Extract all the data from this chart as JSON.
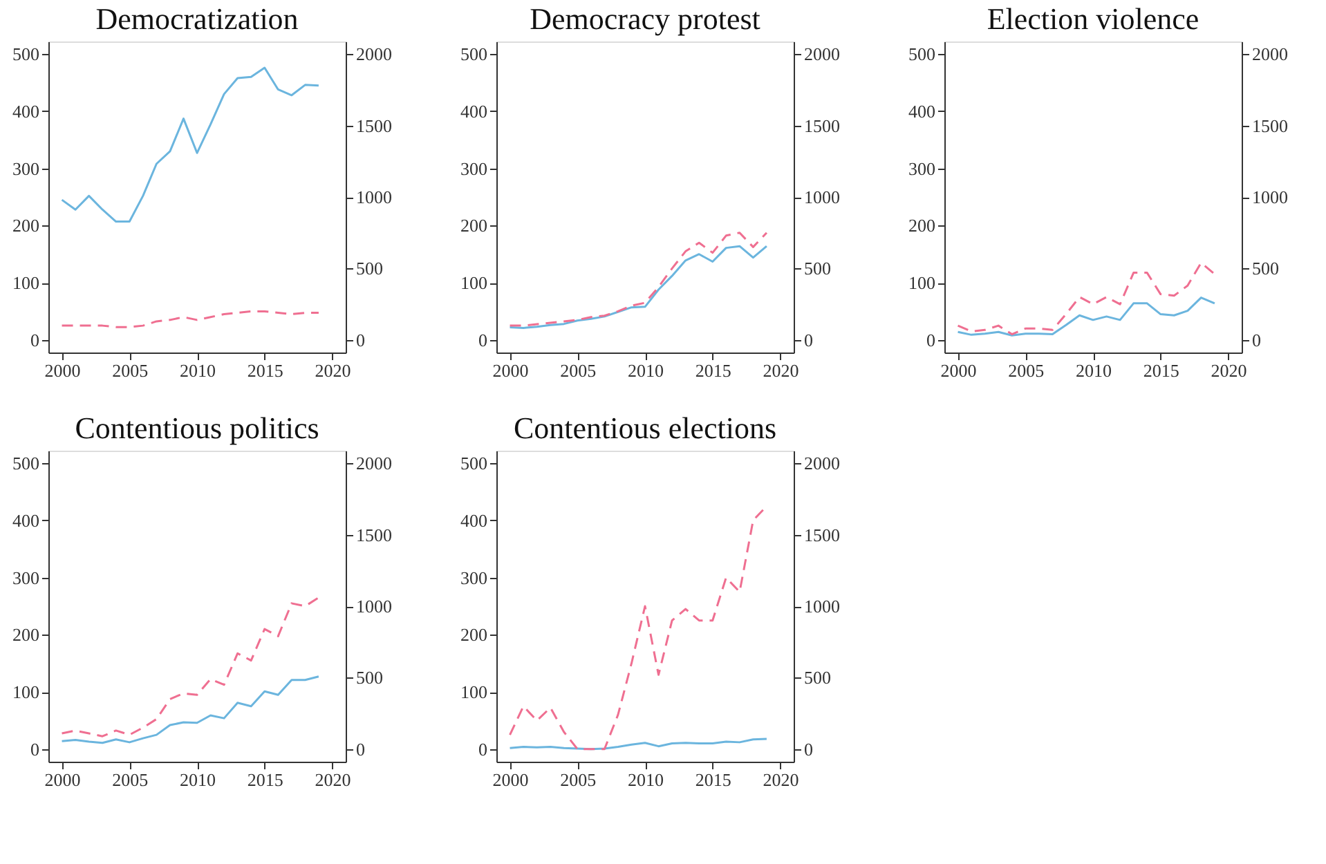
{
  "chart_data": [
    {
      "type": "line",
      "title": "Democratization",
      "x": [
        2000,
        2001,
        2002,
        2003,
        2004,
        2005,
        2006,
        2007,
        2008,
        2009,
        2010,
        2011,
        2012,
        2013,
        2014,
        2015,
        2016,
        2017,
        2018,
        2019
      ],
      "xlim": [
        1999,
        2021
      ],
      "xticks": [
        2000,
        2005,
        2010,
        2015,
        2020
      ],
      "ylim": [
        -22,
        522
      ],
      "yticks": [
        0,
        100,
        200,
        300,
        400,
        500
      ],
      "y2lim": [
        -88,
        2088
      ],
      "y2ticks": [
        0,
        500,
        1000,
        1500,
        2000
      ],
      "grid": false,
      "series": [
        {
          "color": "#6bb5de",
          "line_style": "solid",
          "values": [
            245,
            228,
            252,
            228,
            207,
            207,
            252,
            308,
            330,
            387,
            327,
            377,
            430,
            458,
            460,
            476,
            438,
            428,
            446,
            445
          ]
        },
        {
          "color": "#ef6f91",
          "line_style": "dashed",
          "axis": "y2",
          "values": [
            100,
            100,
            100,
            100,
            90,
            90,
            100,
            130,
            140,
            160,
            140,
            160,
            180,
            190,
            200,
            200,
            190,
            180,
            190,
            190
          ]
        }
      ]
    },
    {
      "type": "line",
      "title": "Democracy protest",
      "x": [
        2000,
        2001,
        2002,
        2003,
        2004,
        2005,
        2006,
        2007,
        2008,
        2009,
        2010,
        2011,
        2012,
        2013,
        2014,
        2015,
        2016,
        2017,
        2018,
        2019
      ],
      "xlim": [
        1999,
        2021
      ],
      "xticks": [
        2000,
        2005,
        2010,
        2015,
        2020
      ],
      "ylim": [
        -22,
        522
      ],
      "yticks": [
        0,
        100,
        200,
        300,
        400,
        500
      ],
      "y2lim": [
        -88,
        2088
      ],
      "y2ticks": [
        0,
        500,
        1000,
        1500,
        2000
      ],
      "grid": false,
      "series": [
        {
          "color": "#6bb5de",
          "line_style": "solid",
          "values": [
            22,
            21,
            23,
            26,
            28,
            34,
            37,
            41,
            49,
            57,
            58,
            88,
            112,
            139,
            150,
            137,
            161,
            164,
            144,
            164
          ]
        },
        {
          "color": "#ef6f91",
          "line_style": "dashed",
          "axis": "y2",
          "values": [
            100,
            100,
            110,
            120,
            130,
            140,
            160,
            170,
            200,
            240,
            260,
            370,
            500,
            620,
            680,
            610,
            730,
            750,
            650,
            750
          ]
        }
      ]
    },
    {
      "type": "line",
      "title": "Election violence",
      "x": [
        2000,
        2001,
        2002,
        2003,
        2004,
        2005,
        2006,
        2007,
        2008,
        2009,
        2010,
        2011,
        2012,
        2013,
        2014,
        2015,
        2016,
        2017,
        2018,
        2019
      ],
      "xlim": [
        1999,
        2021
      ],
      "xticks": [
        2000,
        2005,
        2010,
        2015,
        2020
      ],
      "ylim": [
        -22,
        522
      ],
      "yticks": [
        0,
        100,
        200,
        300,
        400,
        500
      ],
      "y2lim": [
        -88,
        2088
      ],
      "y2ticks": [
        0,
        500,
        1000,
        1500,
        2000
      ],
      "grid": false,
      "series": [
        {
          "color": "#6bb5de",
          "line_style": "solid",
          "values": [
            14,
            9,
            11,
            14,
            8,
            11,
            11,
            10,
            26,
            43,
            35,
            41,
            35,
            64,
            64,
            45,
            43,
            51,
            74,
            64
          ]
        },
        {
          "color": "#ef6f91",
          "line_style": "dashed",
          "axis": "y2",
          "values": [
            100,
            60,
            70,
            100,
            40,
            80,
            80,
            70,
            180,
            300,
            250,
            300,
            250,
            470,
            470,
            320,
            310,
            380,
            540,
            460
          ]
        }
      ]
    },
    {
      "type": "line",
      "title": "Contentious politics",
      "x": [
        2000,
        2001,
        2002,
        2003,
        2004,
        2005,
        2006,
        2007,
        2008,
        2009,
        2010,
        2011,
        2012,
        2013,
        2014,
        2015,
        2016,
        2017,
        2018,
        2019
      ],
      "xlim": [
        1999,
        2021
      ],
      "xticks": [
        2000,
        2005,
        2010,
        2015,
        2020
      ],
      "ylim": [
        -22,
        522
      ],
      "yticks": [
        0,
        100,
        200,
        300,
        400,
        500
      ],
      "y2lim": [
        -88,
        2088
      ],
      "y2ticks": [
        0,
        500,
        1000,
        1500,
        2000
      ],
      "grid": false,
      "series": [
        {
          "color": "#6bb5de",
          "line_style": "solid",
          "values": [
            14,
            16,
            13,
            11,
            17,
            12,
            19,
            25,
            42,
            47,
            46,
            59,
            54,
            81,
            75,
            101,
            95,
            121,
            121,
            127
          ]
        },
        {
          "color": "#ef6f91",
          "line_style": "dashed",
          "axis": "y2",
          "values": [
            110,
            130,
            110,
            90,
            130,
            100,
            150,
            210,
            350,
            390,
            380,
            490,
            450,
            670,
            620,
            840,
            790,
            1020,
            1000,
            1060
          ]
        }
      ]
    },
    {
      "type": "line",
      "title": "Contentious elections",
      "x": [
        2000,
        2001,
        2002,
        2003,
        2004,
        2005,
        2006,
        2007,
        2008,
        2009,
        2010,
        2011,
        2012,
        2013,
        2014,
        2015,
        2016,
        2017,
        2018,
        2019
      ],
      "xlim": [
        1999,
        2021
      ],
      "xticks": [
        2000,
        2005,
        2010,
        2015,
        2020
      ],
      "ylim": [
        -22,
        522
      ],
      "yticks": [
        0,
        100,
        200,
        300,
        400,
        500
      ],
      "y2lim": [
        -88,
        2088
      ],
      "y2ticks": [
        0,
        500,
        1000,
        1500,
        2000
      ],
      "grid": false,
      "series": [
        {
          "color": "#6bb5de",
          "line_style": "solid",
          "values": [
            2,
            4,
            3,
            4,
            2,
            1,
            0,
            1,
            4,
            8,
            11,
            5,
            10,
            11,
            10,
            10,
            13,
            12,
            17,
            18
          ]
        },
        {
          "color": "#ef6f91",
          "line_style": "dashed",
          "axis": "y2",
          "values": [
            100,
            300,
            200,
            290,
            120,
            0,
            0,
            0,
            240,
            600,
            1000,
            520,
            900,
            980,
            900,
            900,
            1200,
            1100,
            1600,
            1700
          ]
        }
      ]
    }
  ]
}
